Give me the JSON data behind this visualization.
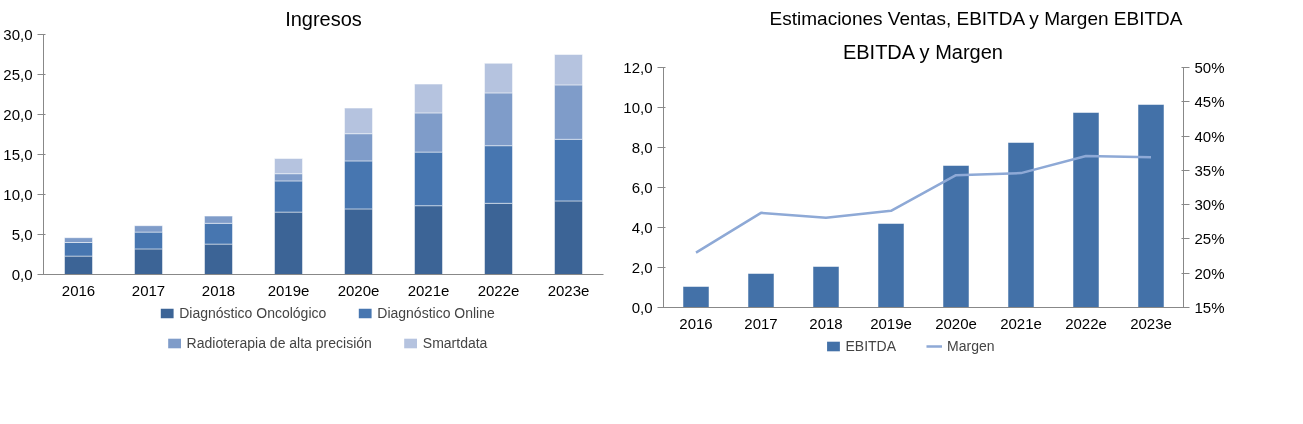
{
  "chart_data": [
    {
      "type": "bar",
      "title": "Ingresos",
      "stacked": true,
      "categories": [
        "2016",
        "2017",
        "2018",
        "2019e",
        "2020e",
        "2021e",
        "2022e",
        "2023e"
      ],
      "series": [
        {
          "name": "Diagnóstico Oncológico",
          "color": "#3c6496",
          "values": [
            2.3,
            3.2,
            3.8,
            7.8,
            8.2,
            8.6,
            8.9,
            9.2
          ]
        },
        {
          "name": "Diagnóstico Online",
          "color": "#4776b0",
          "values": [
            1.7,
            2.1,
            2.6,
            3.9,
            6.0,
            6.7,
            7.2,
            7.7
          ]
        },
        {
          "name": "Radioterapia de alta precisión",
          "color": "#7f9cc9",
          "values": [
            0.6,
            0.8,
            0.9,
            0.9,
            3.4,
            4.9,
            6.6,
            6.8
          ]
        },
        {
          "name": "Smartdata",
          "color": "#b5c3df",
          "values": [
            null,
            null,
            null,
            1.9,
            3.2,
            3.6,
            3.7,
            3.8
          ]
        }
      ],
      "ylim": [
        0,
        30
      ],
      "yticks": [
        {
          "value": 0,
          "label": "0,0"
        },
        {
          "value": 5,
          "label": "5,0"
        },
        {
          "value": 10,
          "label": "10,0"
        },
        {
          "value": 15,
          "label": "15,0"
        },
        {
          "value": 20,
          "label": "20,0"
        },
        {
          "value": 25,
          "label": "25,0"
        },
        {
          "value": 30,
          "label": "30,0"
        }
      ],
      "grid": false,
      "legend": "bottom"
    },
    {
      "type": "bar",
      "title": "EBITDA y Margen",
      "annotations": [
        "Estimaciones Ventas, EBITDA y Margen EBITDA"
      ],
      "categories": [
        "2016",
        "2017",
        "2018",
        "2019e",
        "2020e",
        "2021e",
        "2022e",
        "2023e"
      ],
      "series": [
        {
          "name": "EBITDA",
          "color": "#4371a8",
          "values": [
            1.05,
            1.7,
            2.05,
            4.2,
            7.1,
            8.25,
            9.75,
            10.15
          ]
        },
        {
          "name": "Margen",
          "type": "line",
          "axis": "y2",
          "color": "#8ea9d6",
          "values": [
            23,
            28.8,
            28.1,
            29.1,
            34.3,
            34.6,
            37.1,
            36.9
          ]
        }
      ],
      "ylim": [
        0,
        12
      ],
      "yticks": [
        {
          "value": 0,
          "label": "0,0"
        },
        {
          "value": 2,
          "label": "2,0"
        },
        {
          "value": 4,
          "label": "4,0"
        },
        {
          "value": 6,
          "label": "6,0"
        },
        {
          "value": 8,
          "label": "8,0"
        },
        {
          "value": 10,
          "label": "10,0"
        },
        {
          "value": 12,
          "label": "12,0"
        }
      ],
      "y2lim": [
        15,
        50
      ],
      "y2ticks": [
        {
          "value": 15,
          "label": "15%"
        },
        {
          "value": 20,
          "label": "20%"
        },
        {
          "value": 25,
          "label": "25%"
        },
        {
          "value": 30,
          "label": "30%"
        },
        {
          "value": 35,
          "label": "35%"
        },
        {
          "value": 40,
          "label": "40%"
        },
        {
          "value": 45,
          "label": "45%"
        },
        {
          "value": 50,
          "label": "50%"
        }
      ],
      "grid": false,
      "legend": "bottom"
    }
  ]
}
